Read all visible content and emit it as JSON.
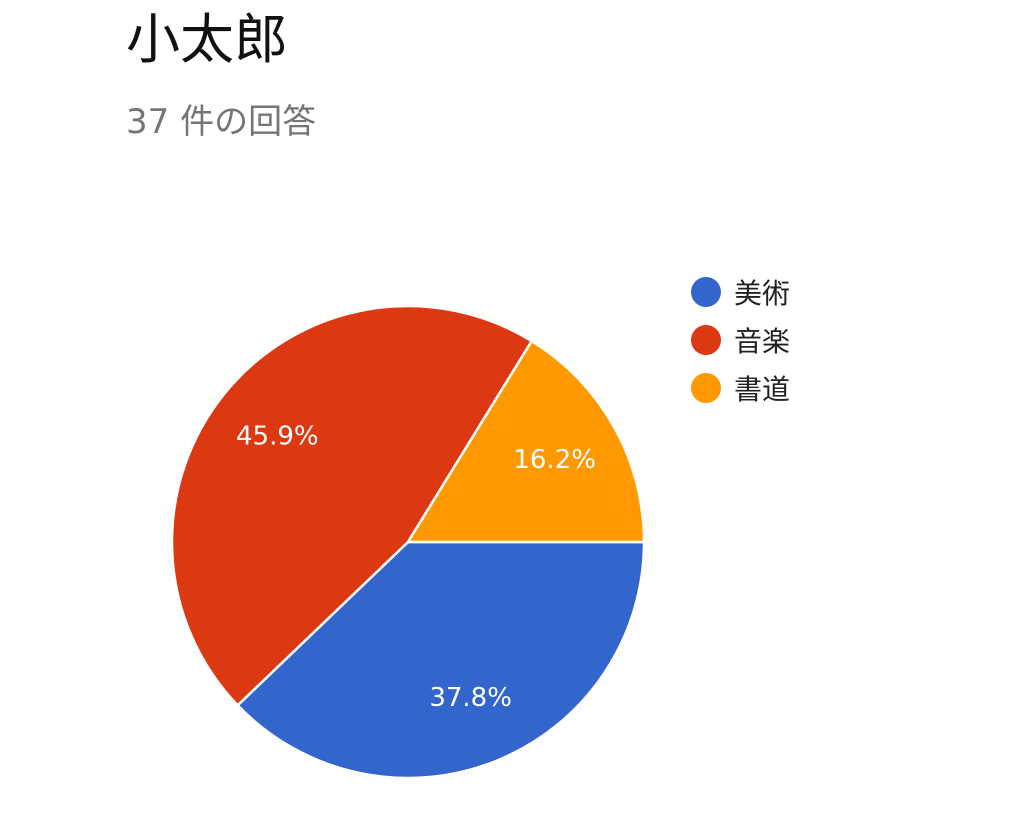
{
  "header": {
    "title": "小太郎",
    "subtitle": "37 件の回答"
  },
  "chart_data": {
    "type": "pie",
    "title": "小太郎",
    "subtitle": "37 件の回答",
    "legend_position": "right",
    "slices": [
      {
        "label": "美術",
        "value": 37.8,
        "value_label": "37.8%",
        "color": "#3366cc"
      },
      {
        "label": "音楽",
        "value": 45.9,
        "value_label": "45.9%",
        "color": "#dc3912"
      },
      {
        "label": "書道",
        "value": 16.2,
        "value_label": "16.2%",
        "color": "#ff9900"
      }
    ]
  }
}
